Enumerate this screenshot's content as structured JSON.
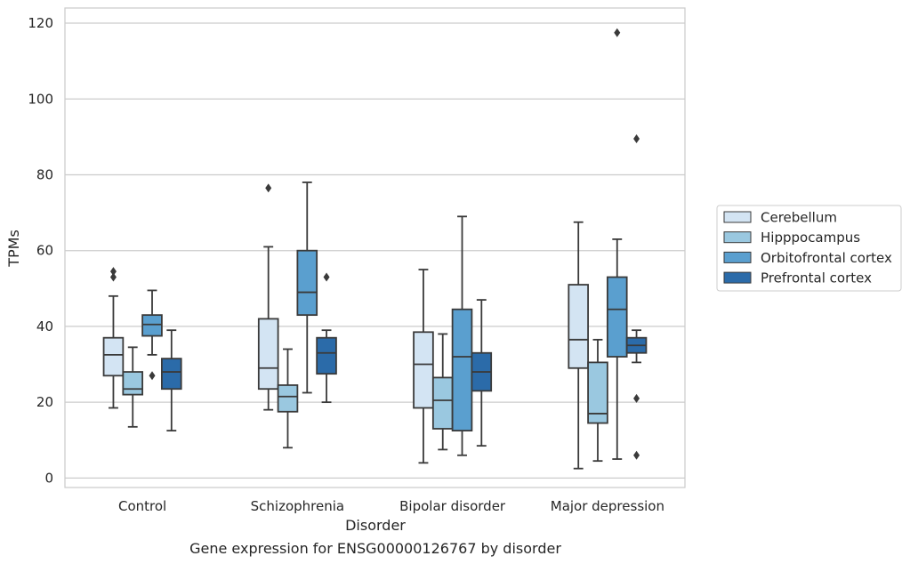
{
  "chart_data": {
    "type": "box",
    "caption": "Gene expression for ENSG00000126767 by disorder",
    "xlabel": "Disorder",
    "ylabel": "TPMs",
    "ylim": [
      -2.5,
      124
    ],
    "yticks": [
      0,
      20,
      40,
      60,
      80,
      100,
      120
    ],
    "grid": "horizontal",
    "legend_position": "right",
    "categories": [
      "Control",
      "Schizophrenia",
      "Bipolar disorder",
      "Major depression"
    ],
    "series": [
      {
        "name": "Cerebellum",
        "color": "#d3e4f3",
        "boxes": [
          {
            "q1": 27,
            "median": 32.5,
            "q3": 37,
            "whisker_low": 18.5,
            "whisker_high": 48,
            "outliers": [
              53,
              54.5
            ]
          },
          {
            "q1": 23.5,
            "median": 29,
            "q3": 42,
            "whisker_low": 18,
            "whisker_high": 61,
            "outliers": [
              76.5
            ]
          },
          {
            "q1": 18.5,
            "median": 30,
            "q3": 38.5,
            "whisker_low": 4,
            "whisker_high": 55,
            "outliers": []
          },
          {
            "q1": 29,
            "median": 36.5,
            "q3": 51,
            "whisker_low": 2.5,
            "whisker_high": 67.5,
            "outliers": []
          }
        ]
      },
      {
        "name": "Hipppocampus",
        "color": "#9ac8e0",
        "boxes": [
          {
            "q1": 22,
            "median": 23.5,
            "q3": 28,
            "whisker_low": 13.5,
            "whisker_high": 34.5,
            "outliers": []
          },
          {
            "q1": 17.5,
            "median": 21.5,
            "q3": 24.5,
            "whisker_low": 8,
            "whisker_high": 34,
            "outliers": []
          },
          {
            "q1": 13,
            "median": 20.5,
            "q3": 26.5,
            "whisker_low": 7.5,
            "whisker_high": 38,
            "outliers": []
          },
          {
            "q1": 14.5,
            "median": 17,
            "q3": 30.5,
            "whisker_low": 4.5,
            "whisker_high": 36.5,
            "outliers": []
          }
        ]
      },
      {
        "name": "Orbitofrontal cortex",
        "color": "#5a9fcf",
        "boxes": [
          {
            "q1": 37.5,
            "median": 40.5,
            "q3": 43,
            "whisker_low": 32.5,
            "whisker_high": 49.5,
            "outliers": [
              27
            ]
          },
          {
            "q1": 43,
            "median": 49,
            "q3": 60,
            "whisker_low": 22.5,
            "whisker_high": 78,
            "outliers": []
          },
          {
            "q1": 12.5,
            "median": 32,
            "q3": 44.5,
            "whisker_low": 6,
            "whisker_high": 69,
            "outliers": []
          },
          {
            "q1": 32,
            "median": 44.5,
            "q3": 53,
            "whisker_low": 5,
            "whisker_high": 63,
            "outliers": [
              117.5
            ]
          }
        ]
      },
      {
        "name": "Prefrontal cortex",
        "color": "#2b6ba9",
        "boxes": [
          {
            "q1": 23.5,
            "median": 28,
            "q3": 31.5,
            "whisker_low": 12.5,
            "whisker_high": 39,
            "outliers": []
          },
          {
            "q1": 27.5,
            "median": 33,
            "q3": 37,
            "whisker_low": 20,
            "whisker_high": 39,
            "outliers": [
              53
            ]
          },
          {
            "q1": 23,
            "median": 28,
            "q3": 33,
            "whisker_low": 8.5,
            "whisker_high": 47,
            "outliers": []
          },
          {
            "q1": 33,
            "median": 35,
            "q3": 37,
            "whisker_low": 30.5,
            "whisker_high": 39,
            "outliers": [
              21,
              6,
              89.5
            ]
          }
        ]
      }
    ]
  }
}
